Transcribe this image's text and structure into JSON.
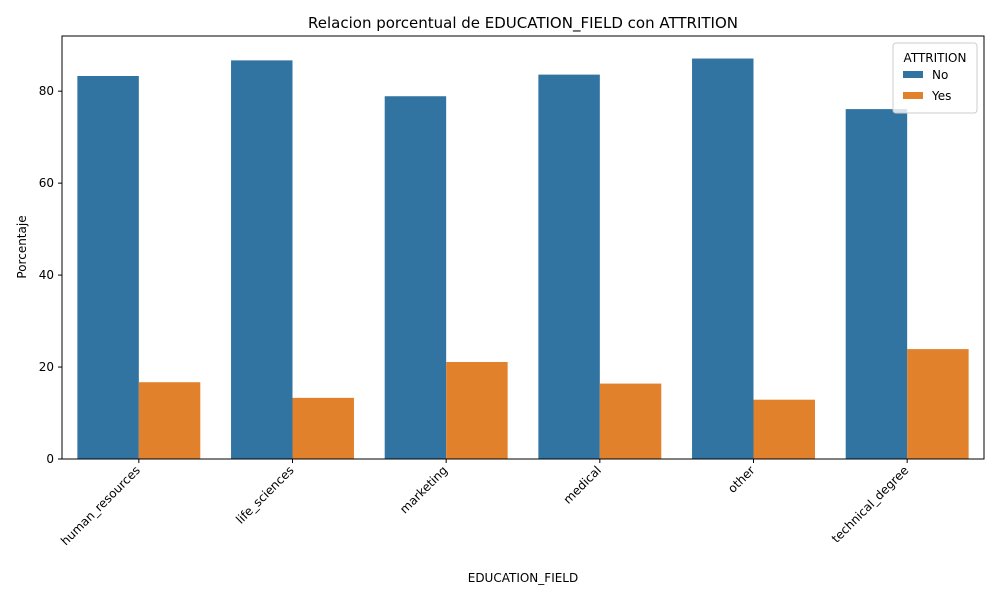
{
  "chart_data": {
    "type": "bar",
    "title": "Relacion porcentual de EDUCATION_FIELD con ATTRITION",
    "xlabel": "EDUCATION_FIELD",
    "ylabel": "Porcentaje",
    "ylim": [
      0,
      92
    ],
    "yticks": [
      0,
      20,
      40,
      60,
      80
    ],
    "grid": false,
    "categories": [
      "human_resources",
      "life_sciences",
      "marketing",
      "medical",
      "other",
      "technical_degree"
    ],
    "legend": {
      "title": "ATTRITION",
      "placement": "top-right"
    },
    "series": [
      {
        "name": "No",
        "color": "#3274a1",
        "values": [
          83.3,
          86.7,
          78.9,
          83.6,
          87.1,
          76.1
        ]
      },
      {
        "name": "Yes",
        "color": "#e1812c",
        "values": [
          16.7,
          13.3,
          21.1,
          16.4,
          12.9,
          23.9
        ]
      }
    ]
  }
}
